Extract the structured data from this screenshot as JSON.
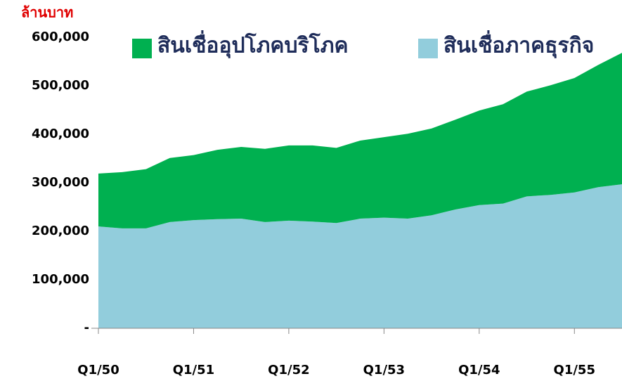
{
  "chart_data": {
    "type": "stacked_area",
    "y_unit_label": "ล้านบาท",
    "categories": [
      "Q1/50",
      null,
      null,
      null,
      "Q1/51",
      null,
      null,
      null,
      "Q1/52",
      null,
      null,
      null,
      "Q1/53",
      null,
      null,
      null,
      "Q1/54",
      null,
      null,
      null,
      "Q1/55",
      null,
      null
    ],
    "series": [
      {
        "name": "สินเชื่ออุปโภคบริโภค",
        "color": "#00b050",
        "values": [
          109000,
          116000,
          122000,
          132000,
          134000,
          143000,
          148000,
          151000,
          155000,
          157000,
          155000,
          161000,
          166000,
          175000,
          179000,
          185000,
          195000,
          205000,
          216000,
          226000,
          236000,
          252000,
          271000
        ]
      },
      {
        "name": "สินเชื่อภาคธุรกิจ",
        "color": "#92cddc",
        "values": [
          210000,
          206000,
          206000,
          219000,
          223000,
          225000,
          226000,
          219000,
          222000,
          220000,
          217000,
          226000,
          228000,
          226000,
          233000,
          245000,
          254000,
          257000,
          272000,
          275000,
          280000,
          291000,
          297000
        ]
      }
    ],
    "ylim": [
      0,
      600000
    ],
    "yticks": [
      {
        "value": 0,
        "label": "-"
      },
      {
        "value": 100000,
        "label": "100,000"
      },
      {
        "value": 200000,
        "label": "200,000"
      },
      {
        "value": 300000,
        "label": "300,000"
      },
      {
        "value": 400000,
        "label": "400,000"
      },
      {
        "value": 500000,
        "label": "500,000"
      },
      {
        "value": 600000,
        "label": "600,000"
      }
    ]
  }
}
